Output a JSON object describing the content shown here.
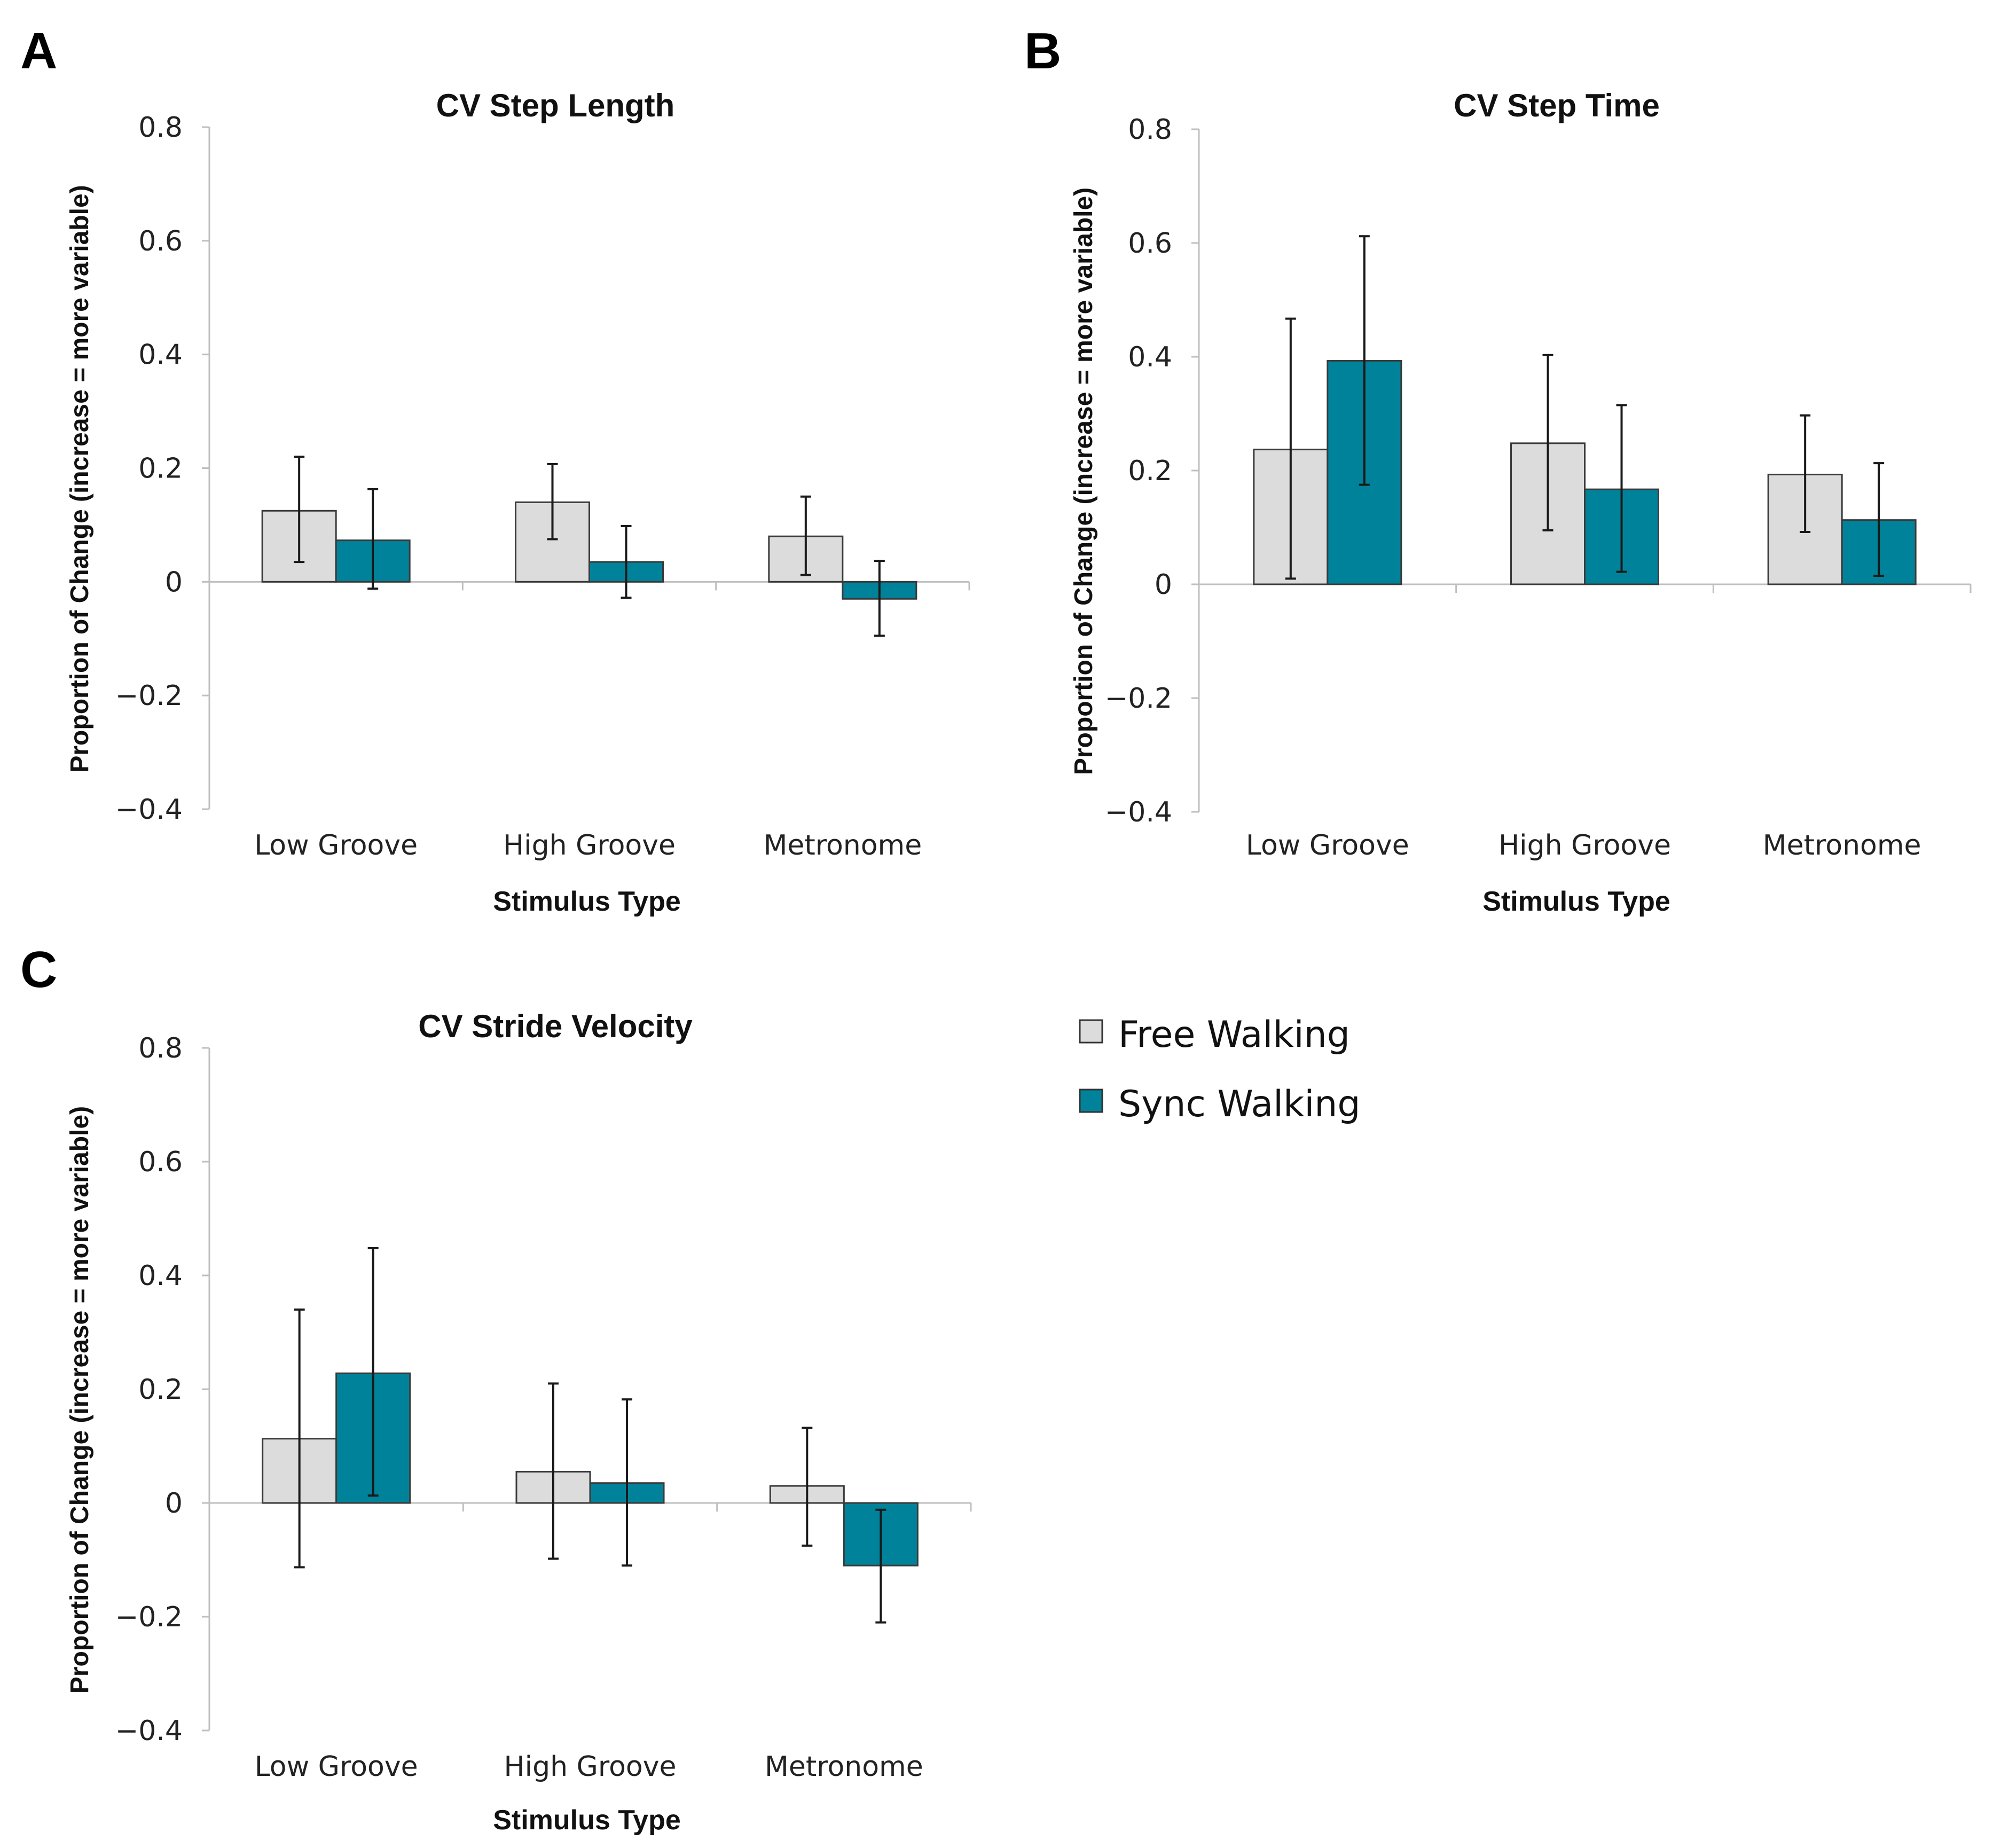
{
  "chart_data": [
    {
      "panel": "A",
      "type": "bar",
      "title": "CV Step Length",
      "xlabel": "Stimulus Type",
      "ylabel": "Proportion of Change (increase = more variable)",
      "categories": [
        "Low Groove",
        "High Groove",
        "Metronome"
      ],
      "ylim": [
        -0.4,
        0.8
      ],
      "yticks": [
        "0.8",
        "0.6",
        "0.4",
        "0.2",
        "0",
        "−0.2",
        "−0.4"
      ],
      "series": [
        {
          "name": "Free Walking",
          "values": [
            0.125,
            0.14,
            0.08
          ],
          "err_low": [
            0.035,
            0.075,
            0.012
          ],
          "err_high": [
            0.22,
            0.207,
            0.15
          ]
        },
        {
          "name": "Sync Walking",
          "values": [
            0.073,
            0.035,
            -0.03
          ],
          "err_low": [
            -0.012,
            -0.028,
            -0.095
          ],
          "err_high": [
            0.163,
            0.098,
            0.037
          ]
        }
      ]
    },
    {
      "panel": "B",
      "type": "bar",
      "title": "CV Step Time",
      "xlabel": "Stimulus Type",
      "ylabel": "Proportion of Change (increase = more variable)",
      "categories": [
        "Low Groove",
        "High Groove",
        "Metronome"
      ],
      "ylim": [
        -0.4,
        0.8
      ],
      "yticks": [
        "0.8",
        "0.6",
        "0.4",
        "0.2",
        "0",
        "−0.2",
        "−0.4"
      ],
      "series": [
        {
          "name": "Free Walking",
          "values": [
            0.237,
            0.248,
            0.193
          ],
          "err_low": [
            0.01,
            0.095,
            0.092
          ],
          "err_high": [
            0.467,
            0.403,
            0.297
          ]
        },
        {
          "name": "Sync Walking",
          "values": [
            0.393,
            0.167,
            0.113
          ],
          "err_low": [
            0.175,
            0.022,
            0.015
          ],
          "err_high": [
            0.612,
            0.315,
            0.213
          ]
        }
      ]
    },
    {
      "panel": "C",
      "type": "bar",
      "title": "CV Stride Velocity",
      "xlabel": "Stimulus Type",
      "ylabel": "Proportion of Change (increase = more variable)",
      "categories": [
        "Low Groove",
        "High Groove",
        "Metronome"
      ],
      "ylim": [
        -0.4,
        0.8
      ],
      "yticks": [
        "0.8",
        "0.6",
        "0.4",
        "0.2",
        "0",
        "−0.2",
        "−0.4"
      ],
      "series": [
        {
          "name": "Free Walking",
          "values": [
            0.113,
            0.055,
            0.03
          ],
          "err_low": [
            -0.113,
            -0.098,
            -0.075
          ],
          "err_high": [
            0.34,
            0.21,
            0.132
          ]
        },
        {
          "name": "Sync Walking",
          "values": [
            0.228,
            0.035,
            -0.11
          ],
          "err_low": [
            0.013,
            -0.11,
            -0.21
          ],
          "err_high": [
            0.448,
            0.182,
            -0.012
          ]
        }
      ]
    }
  ],
  "legend": {
    "items": [
      {
        "label": "Free Walking",
        "color": "#dcdcdc"
      },
      {
        "label": "Sync Walking",
        "color": "#00839a"
      }
    ]
  }
}
